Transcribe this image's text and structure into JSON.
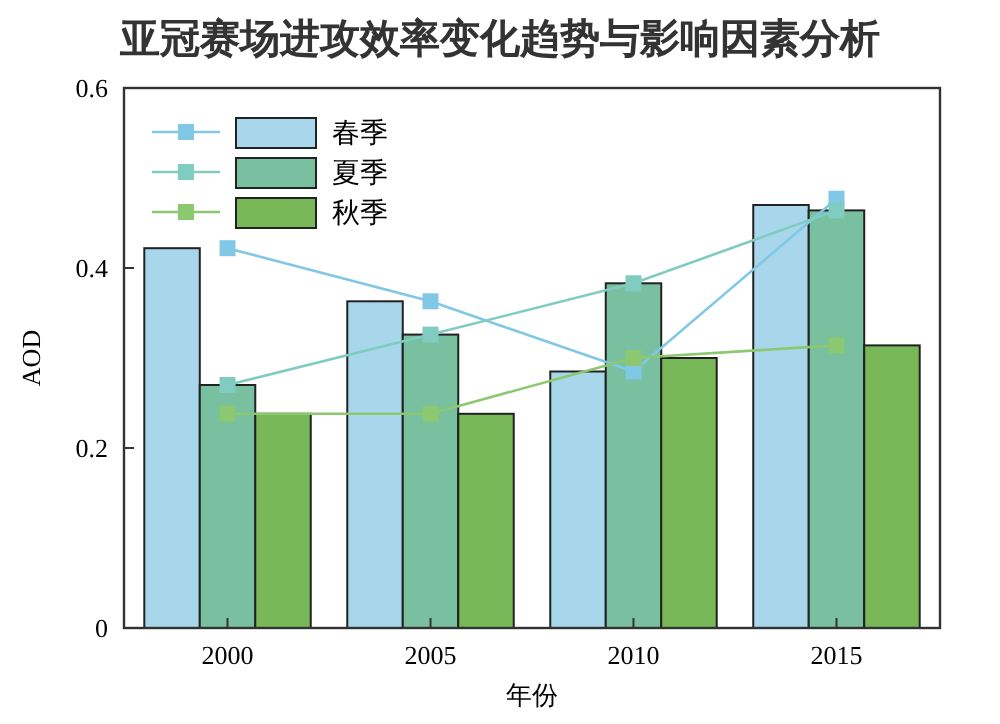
{
  "chart_data": {
    "type": "bar",
    "title": "亚冠赛场进攻效率变化趋势与影响因素分析",
    "xlabel": "年份",
    "ylabel": "AOD",
    "categories": [
      "2000",
      "2005",
      "2010",
      "2015"
    ],
    "series": [
      {
        "name": "春季",
        "color": "#a8d6ea",
        "values": [
          0.422,
          0.363,
          0.285,
          0.47
        ]
      },
      {
        "name": "夏季",
        "color": "#78c0a0",
        "values": [
          0.27,
          0.326,
          0.383,
          0.464
        ]
      },
      {
        "name": "秋季",
        "color": "#78b858",
        "values": [
          0.238,
          0.238,
          0.3,
          0.314
        ]
      },
      {
        "type": "line",
        "color": "#80c8e6",
        "values": [
          0.422,
          0.363,
          0.285,
          0.477
        ]
      },
      {
        "type": "line",
        "color": "#80ccc0",
        "values": [
          0.27,
          0.326,
          0.383,
          0.464
        ]
      },
      {
        "type": "line",
        "color": "#8cc870",
        "values": [
          0.238,
          0.238,
          0.3,
          0.314
        ]
      }
    ],
    "ylim": [
      0,
      0.6
    ],
    "yticks": [
      0,
      0.2,
      0.4,
      0.6
    ],
    "grid": false,
    "legend": "top left",
    "marker": "square",
    "line_style": "solid"
  }
}
